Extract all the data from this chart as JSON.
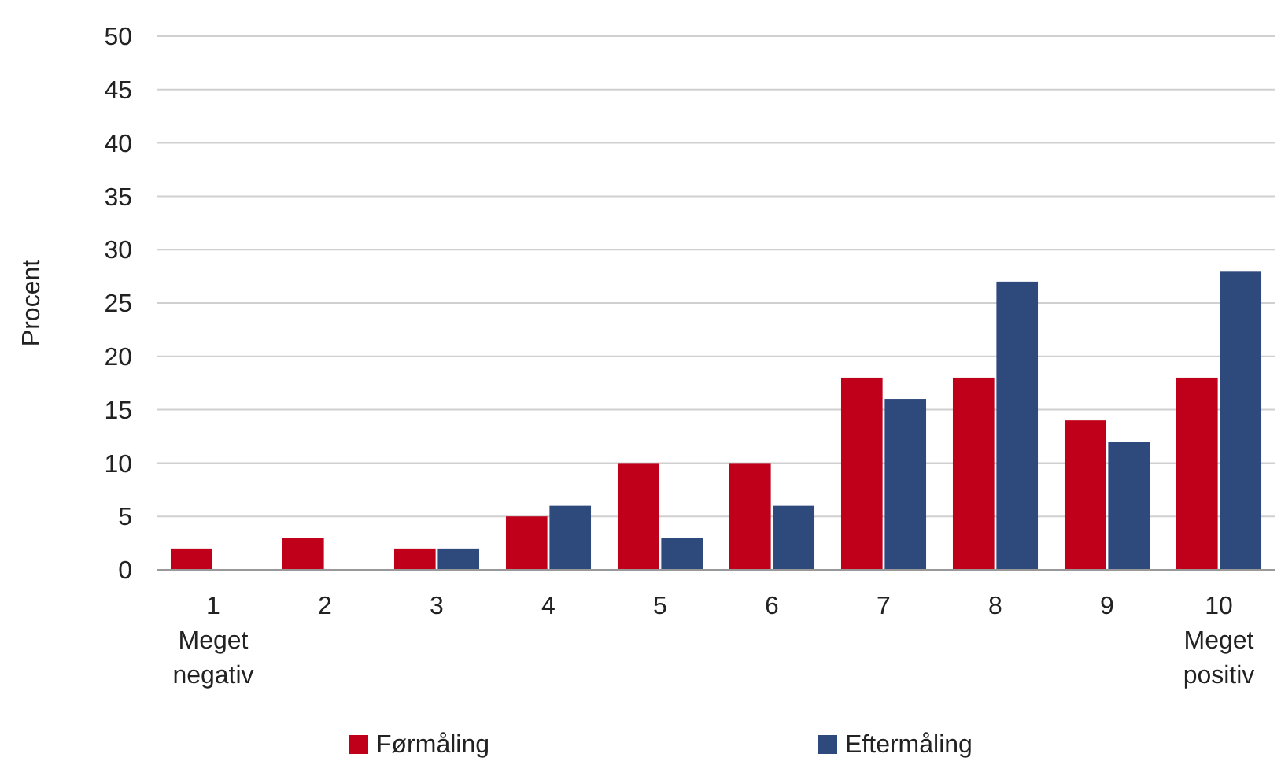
{
  "chart_data": {
    "type": "bar",
    "ylabel": "Procent",
    "categories": [
      "1\nMeget\nnegativ",
      "2",
      "3",
      "4",
      "5",
      "6",
      "7",
      "8",
      "9",
      "10\nMeget\npositiv"
    ],
    "series": [
      {
        "name": "Førmåling",
        "color": "#c0001a",
        "values": [
          2,
          3,
          2,
          5,
          10,
          10,
          18,
          18,
          14,
          18
        ]
      },
      {
        "name": "Eftermåling",
        "color": "#2e4a7d",
        "values": [
          0,
          0,
          2,
          6,
          3,
          6,
          16,
          27,
          12,
          28
        ]
      }
    ],
    "ylim": [
      0,
      50
    ],
    "yticks": [
      0,
      5,
      10,
      15,
      20,
      25,
      30,
      35,
      40,
      45,
      50
    ],
    "grid": "y",
    "legend": "bottom"
  }
}
